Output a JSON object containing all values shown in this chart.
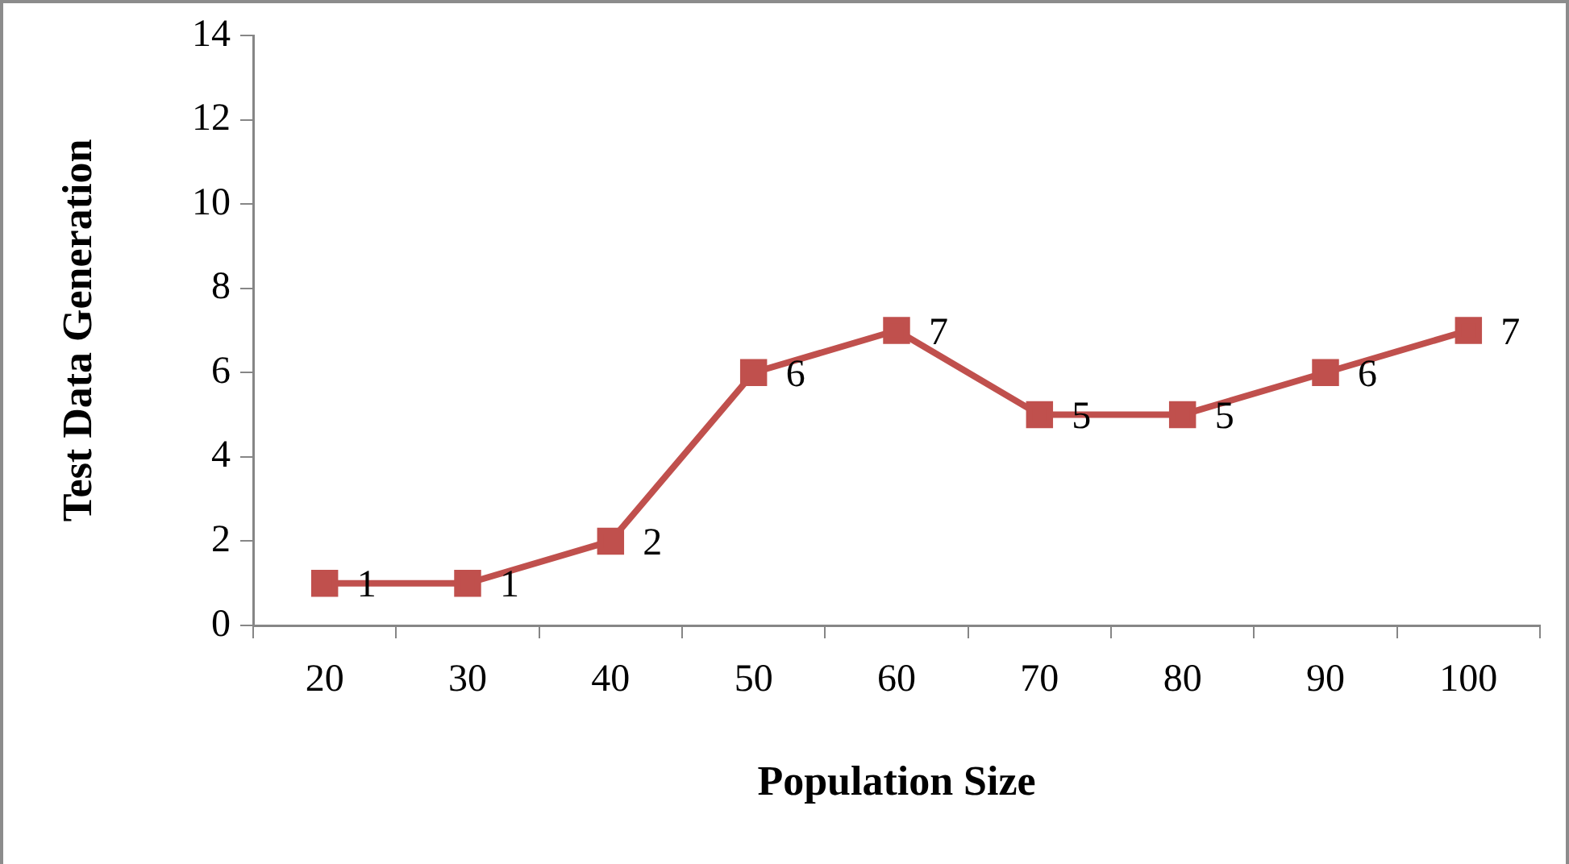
{
  "chart_data": {
    "type": "line",
    "xlabel": "Population Size",
    "ylabel": "Test Data Generation",
    "categories": [
      "20",
      "30",
      "40",
      "50",
      "60",
      "70",
      "80",
      "90",
      "100"
    ],
    "series": [
      {
        "color": "#c0504d",
        "values": [
          1,
          1,
          2,
          6,
          7,
          5,
          5,
          6,
          7
        ]
      }
    ],
    "ylim": [
      0,
      14
    ],
    "yticks": [
      0,
      2,
      4,
      6,
      8,
      10,
      12,
      14
    ],
    "grid": false,
    "legend": false,
    "marker": "square",
    "line_style": "solid",
    "data_labels": true
  }
}
